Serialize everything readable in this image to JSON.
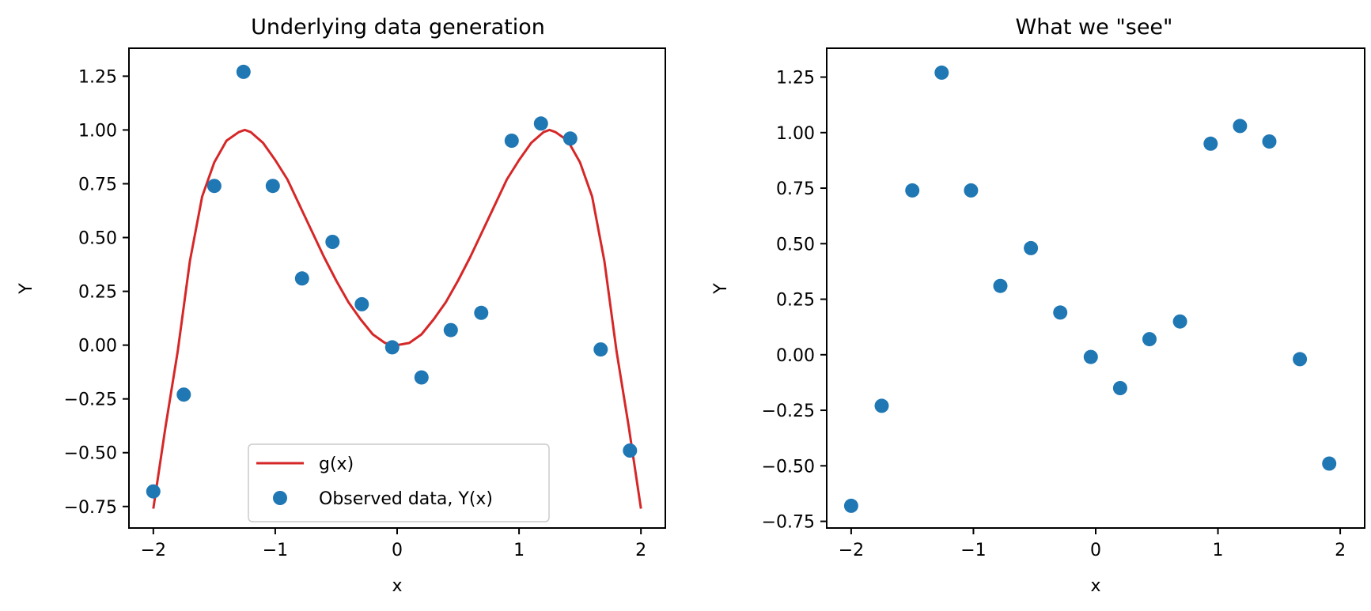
{
  "chart_data": [
    {
      "type": "scatter",
      "title": "Underlying data generation",
      "xlabel": "x",
      "ylabel": "Y",
      "xlim": [
        -2.2,
        2.2
      ],
      "ylim": [
        -0.85,
        1.38
      ],
      "xticks": [
        -2,
        -1,
        0,
        1,
        2
      ],
      "xtick_labels": [
        "−2",
        "−1",
        "0",
        "1",
        "2"
      ],
      "yticks": [
        -0.75,
        -0.5,
        -0.25,
        0.0,
        0.25,
        0.5,
        0.75,
        1.0,
        1.25
      ],
      "ytick_labels": [
        "−0.75",
        "−0.50",
        "−0.25",
        "0.00",
        "0.25",
        "0.50",
        "0.75",
        "1.00",
        "1.25"
      ],
      "grid": false,
      "legend": "lower-center",
      "series": [
        {
          "name": "g(x)",
          "kind": "line",
          "color": "#d62728",
          "x": [
            -2.0,
            -1.9,
            -1.8,
            -1.7,
            -1.6,
            -1.5,
            -1.4,
            -1.3,
            -1.25,
            -1.2,
            -1.1,
            -1.0,
            -0.9,
            -0.8,
            -0.7,
            -0.6,
            -0.5,
            -0.4,
            -0.3,
            -0.2,
            -0.1,
            0.0,
            0.1,
            0.2,
            0.3,
            0.4,
            0.5,
            0.6,
            0.7,
            0.8,
            0.9,
            1.0,
            1.1,
            1.2,
            1.25,
            1.3,
            1.4,
            1.5,
            1.6,
            1.7,
            1.8,
            1.9,
            2.0
          ],
          "y": [
            -0.76,
            -0.38,
            -0.03,
            0.39,
            0.69,
            0.85,
            0.95,
            0.99,
            1.0,
            0.99,
            0.94,
            0.86,
            0.77,
            0.65,
            0.53,
            0.41,
            0.3,
            0.2,
            0.12,
            0.05,
            0.01,
            0.0,
            0.01,
            0.05,
            0.12,
            0.2,
            0.3,
            0.41,
            0.53,
            0.65,
            0.77,
            0.86,
            0.94,
            0.99,
            1.0,
            0.99,
            0.95,
            0.85,
            0.69,
            0.39,
            -0.03,
            -0.38,
            -0.76
          ]
        },
        {
          "name": "Observed data, Y(x)",
          "kind": "scatter",
          "color": "#1f77b4",
          "x": [
            -2.0,
            -1.75,
            -1.5,
            -1.26,
            -1.02,
            -0.78,
            -0.53,
            -0.29,
            -0.04,
            0.2,
            0.44,
            0.69,
            0.94,
            1.18,
            1.42,
            1.67,
            1.91
          ],
          "y": [
            -0.68,
            -0.23,
            0.74,
            1.27,
            0.74,
            0.31,
            0.48,
            0.19,
            -0.01,
            -0.15,
            0.07,
            0.15,
            0.95,
            1.03,
            0.96,
            -0.02,
            -0.49
          ]
        }
      ]
    },
    {
      "type": "scatter",
      "title": "What we \"see\"",
      "xlabel": "x",
      "ylabel": "Y",
      "xlim": [
        -2.2,
        2.2
      ],
      "ylim": [
        -0.78,
        1.38
      ],
      "xticks": [
        -2,
        -1,
        0,
        1,
        2
      ],
      "xtick_labels": [
        "−2",
        "−1",
        "0",
        "1",
        "2"
      ],
      "yticks": [
        -0.75,
        -0.5,
        -0.25,
        0.0,
        0.25,
        0.5,
        0.75,
        1.0,
        1.25
      ],
      "ytick_labels": [
        "−0.75",
        "−0.50",
        "−0.25",
        "0.00",
        "0.25",
        "0.50",
        "0.75",
        "1.00",
        "1.25"
      ],
      "grid": false,
      "series": [
        {
          "kind": "scatter",
          "color": "#1f77b4",
          "x": [
            -2.0,
            -1.75,
            -1.5,
            -1.26,
            -1.02,
            -0.78,
            -0.53,
            -0.29,
            -0.04,
            0.2,
            0.44,
            0.69,
            0.94,
            1.18,
            1.42,
            1.67,
            1.91
          ],
          "y": [
            -0.68,
            -0.23,
            0.74,
            1.27,
            0.74,
            0.31,
            0.48,
            0.19,
            -0.01,
            -0.15,
            0.07,
            0.15,
            0.95,
            1.03,
            0.96,
            -0.02,
            -0.49
          ]
        }
      ]
    }
  ]
}
